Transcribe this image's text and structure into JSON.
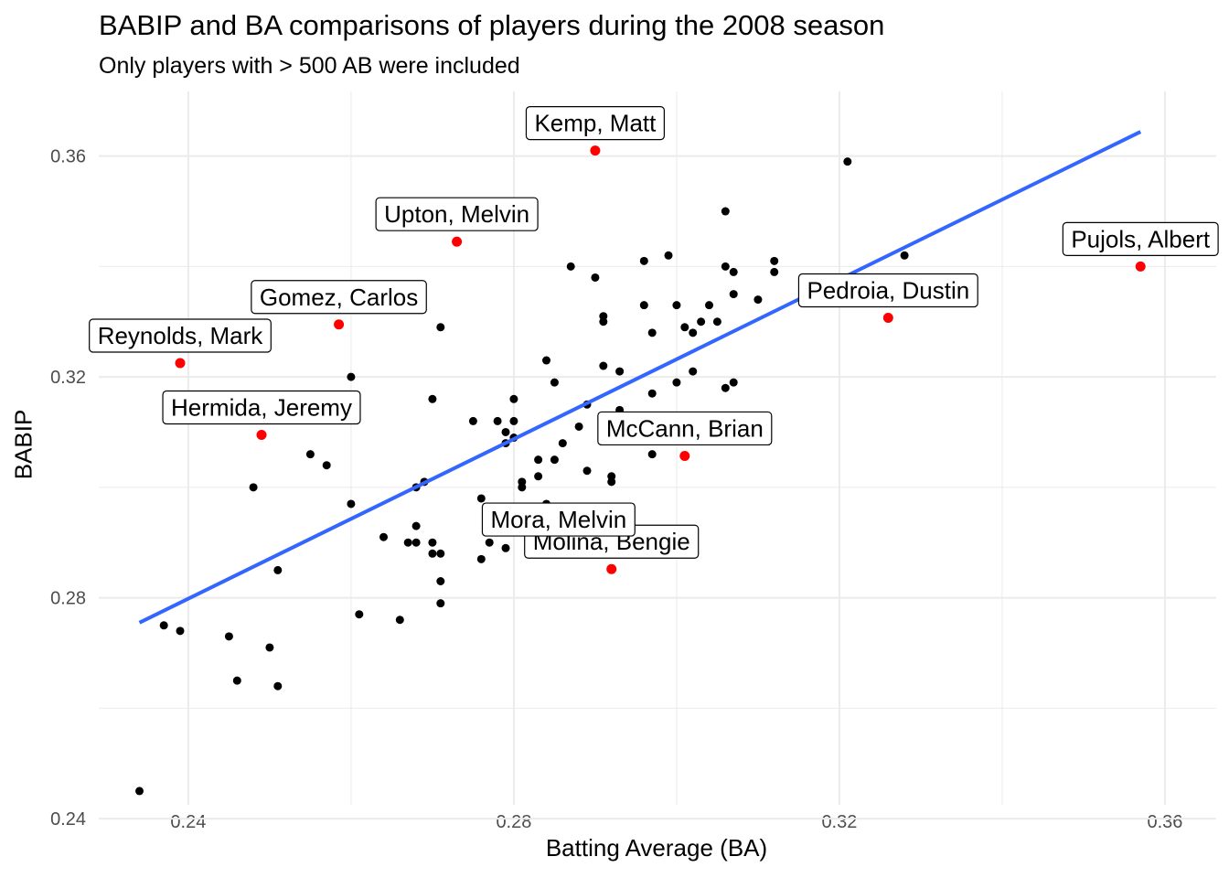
{
  "chart_data": {
    "type": "scatter",
    "title": "BABIP and BA comparisons of players during the 2008 season",
    "subtitle": "Only players with > 500 AB were included",
    "xlabel": "Batting Average (BA)",
    "ylabel": "BABIP",
    "xlim": [
      0.229,
      0.3663
    ],
    "ylim": [
      0.2425,
      0.3717
    ],
    "xticks": [
      0.24,
      0.28,
      0.32,
      0.36
    ],
    "yticks": [
      0.24,
      0.28,
      0.32,
      0.36
    ],
    "xtick_labels": [
      "0.24",
      "0.28",
      "0.32",
      "0.36"
    ],
    "ytick_labels": [
      "0.24",
      "0.28",
      "0.32",
      "0.36"
    ],
    "grid": true,
    "colors": {
      "points": "#000000",
      "highlight": "#ff0000",
      "trend": "#3366ff",
      "grid": "#ebebeb"
    },
    "trend_line": {
      "x": [
        0.234,
        0.357
      ],
      "y": [
        0.2755,
        0.3644
      ]
    },
    "series": [
      {
        "values": [
          [
            0.234,
            0.245
          ],
          [
            0.237,
            0.275
          ],
          [
            0.239,
            0.274
          ],
          [
            0.245,
            0.273
          ],
          [
            0.246,
            0.265
          ],
          [
            0.248,
            0.3
          ],
          [
            0.25,
            0.271
          ],
          [
            0.251,
            0.264
          ],
          [
            0.251,
            0.285
          ],
          [
            0.255,
            0.306
          ],
          [
            0.257,
            0.304
          ],
          [
            0.26,
            0.297
          ],
          [
            0.26,
            0.32
          ],
          [
            0.261,
            0.277
          ],
          [
            0.264,
            0.291
          ],
          [
            0.266,
            0.276
          ],
          [
            0.267,
            0.29
          ],
          [
            0.268,
            0.29
          ],
          [
            0.268,
            0.293
          ],
          [
            0.268,
            0.3
          ],
          [
            0.269,
            0.301
          ],
          [
            0.27,
            0.316
          ],
          [
            0.27,
            0.29
          ],
          [
            0.27,
            0.288
          ],
          [
            0.271,
            0.329
          ],
          [
            0.271,
            0.288
          ],
          [
            0.271,
            0.283
          ],
          [
            0.271,
            0.279
          ],
          [
            0.275,
            0.312
          ],
          [
            0.276,
            0.298
          ],
          [
            0.276,
            0.287
          ],
          [
            0.277,
            0.293
          ],
          [
            0.277,
            0.29
          ],
          [
            0.278,
            0.312
          ],
          [
            0.279,
            0.31
          ],
          [
            0.279,
            0.308
          ],
          [
            0.279,
            0.289
          ],
          [
            0.28,
            0.316
          ],
          [
            0.28,
            0.312
          ],
          [
            0.28,
            0.309
          ],
          [
            0.281,
            0.301
          ],
          [
            0.281,
            0.3
          ],
          [
            0.283,
            0.302
          ],
          [
            0.283,
            0.305
          ],
          [
            0.284,
            0.323
          ],
          [
            0.284,
            0.297
          ],
          [
            0.285,
            0.319
          ],
          [
            0.285,
            0.305
          ],
          [
            0.286,
            0.308
          ],
          [
            0.287,
            0.34
          ],
          [
            0.288,
            0.311
          ],
          [
            0.289,
            0.315
          ],
          [
            0.289,
            0.303
          ],
          [
            0.29,
            0.338
          ],
          [
            0.291,
            0.331
          ],
          [
            0.291,
            0.33
          ],
          [
            0.291,
            0.322
          ],
          [
            0.292,
            0.31
          ],
          [
            0.292,
            0.302
          ],
          [
            0.292,
            0.301
          ],
          [
            0.293,
            0.314
          ],
          [
            0.293,
            0.321
          ],
          [
            0.296,
            0.341
          ],
          [
            0.296,
            0.333
          ],
          [
            0.297,
            0.328
          ],
          [
            0.297,
            0.317
          ],
          [
            0.297,
            0.306
          ],
          [
            0.299,
            0.342
          ],
          [
            0.3,
            0.333
          ],
          [
            0.3,
            0.319
          ],
          [
            0.301,
            0.329
          ],
          [
            0.302,
            0.328
          ],
          [
            0.302,
            0.321
          ],
          [
            0.303,
            0.33
          ],
          [
            0.304,
            0.333
          ],
          [
            0.305,
            0.33
          ],
          [
            0.306,
            0.35
          ],
          [
            0.306,
            0.34
          ],
          [
            0.306,
            0.318
          ],
          [
            0.307,
            0.339
          ],
          [
            0.307,
            0.335
          ],
          [
            0.307,
            0.319
          ],
          [
            0.31,
            0.334
          ],
          [
            0.312,
            0.341
          ],
          [
            0.312,
            0.339
          ],
          [
            0.316,
            0.337
          ],
          [
            0.317,
            0.334
          ],
          [
            0.321,
            0.359
          ],
          [
            0.328,
            0.342
          ]
        ]
      },
      {
        "values": [
          [
            0.239,
            0.3225
          ],
          [
            0.249,
            0.3095
          ],
          [
            0.2585,
            0.3295
          ],
          [
            0.273,
            0.3445
          ],
          [
            0.29,
            0.361
          ],
          [
            0.2855,
            0.2892
          ],
          [
            0.292,
            0.2852
          ],
          [
            0.301,
            0.3057
          ],
          [
            0.326,
            0.3307
          ],
          [
            0.357,
            0.34
          ]
        ]
      }
    ],
    "annotations": [
      {
        "text": "Kemp, Matt",
        "x": 0.29,
        "y": 0.361
      },
      {
        "text": "Upton, Melvin",
        "x": 0.273,
        "y": 0.3445
      },
      {
        "text": "Gomez, Carlos",
        "x": 0.2585,
        "y": 0.3295
      },
      {
        "text": "Reynolds, Mark",
        "x": 0.239,
        "y": 0.3225
      },
      {
        "text": "Hermida, Jeremy",
        "x": 0.249,
        "y": 0.3095
      },
      {
        "text": "Pujols, Albert",
        "x": 0.357,
        "y": 0.34
      },
      {
        "text": "Pedroia, Dustin",
        "x": 0.326,
        "y": 0.3307
      },
      {
        "text": "McCann, Brian",
        "x": 0.301,
        "y": 0.3057
      },
      {
        "text": "Molina, Bengie",
        "x": 0.292,
        "y": 0.2852
      },
      {
        "text": "Mora, Melvin",
        "x": 0.2855,
        "y": 0.2892
      }
    ]
  }
}
